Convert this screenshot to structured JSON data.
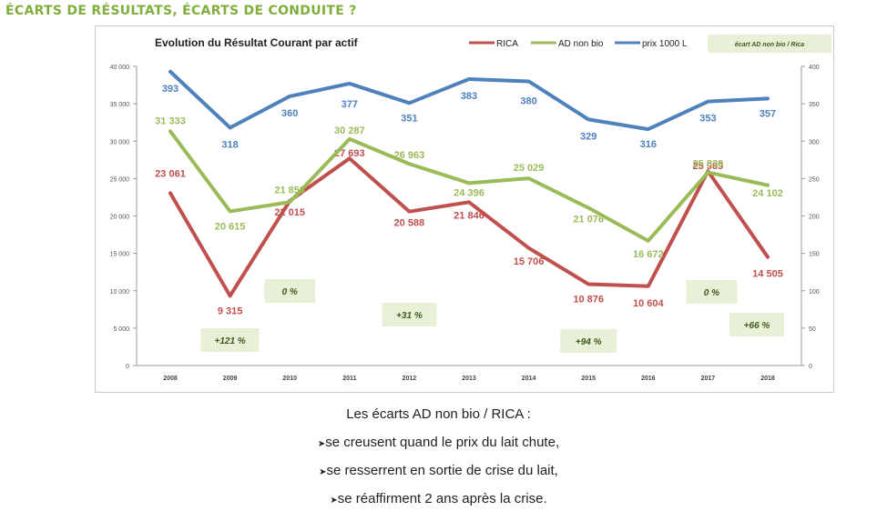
{
  "slide": {
    "heading": "ÉCARTS DE RÉSULTATS, ÉCARTS DE CONDUITE ?",
    "heading_color": "#7fae3a",
    "caption": "Les écarts AD non bio /  RICA :",
    "bullets": [
      "se creusent quand le prix du lait chute,",
      "se resserrent en sortie de crise du lait,",
      "se réaffirment 2 ans après la crise."
    ],
    "bullet_glyph": "➤"
  },
  "chart_data": {
    "type": "line",
    "title": "Evolution du Résultat Courant par actif",
    "categories": [
      "2008",
      "2009",
      "2010",
      "2011",
      "2012",
      "2013",
      "2014",
      "2015",
      "2016",
      "2017",
      "2018"
    ],
    "y_left": {
      "ylim": [
        0,
        40000
      ],
      "ticks": [
        "0",
        "5 000",
        "10 000",
        "15 000",
        "20 000",
        "25 000",
        "30 000",
        "35 000",
        "40 000"
      ]
    },
    "y_right": {
      "ylim": [
        0,
        400
      ],
      "ticks": [
        "0",
        "50",
        "100",
        "150",
        "200",
        "250",
        "300",
        "350",
        "400"
      ]
    },
    "series": [
      {
        "name": "RICA",
        "axis": "left",
        "color": "#c0504d",
        "values": [
          23061,
          9315,
          22015,
          27693,
          20588,
          21846,
          15706,
          10876,
          10604,
          25989,
          14505
        ],
        "labels": [
          "23 061",
          "9 315",
          "22 015",
          "27 693",
          "20 588",
          "21 846",
          "15 706",
          "10 876",
          "10 604",
          "25 989",
          "14 505"
        ]
      },
      {
        "name": "AD non bio",
        "axis": "left",
        "color": "#9bbb59",
        "values": [
          31333,
          20615,
          21853,
          30287,
          26963,
          24396,
          25029,
          21076,
          16672,
          25830,
          24102
        ],
        "labels": [
          "31 333",
          "20 615",
          "21 853",
          "30 287",
          "26 963",
          "24 396",
          "25 029",
          "21 076",
          "16 672",
          "25 830",
          "24 102"
        ]
      },
      {
        "name": "prix 1000 L",
        "axis": "right",
        "color": "#4f81bd",
        "values": [
          393,
          318,
          360,
          377,
          351,
          383,
          380,
          329,
          316,
          353,
          357
        ],
        "labels": [
          "393",
          "318",
          "360",
          "377",
          "351",
          "383",
          "380",
          "329",
          "316",
          "353",
          "357"
        ]
      }
    ],
    "legend_extra": "écart AD non bio / Rica",
    "gap_boxes": [
      {
        "text": "+121 %",
        "year": "2009"
      },
      {
        "text": "0 %",
        "year": "2010"
      },
      {
        "text": "+31 %",
        "year": "2012"
      },
      {
        "text": "+94 %",
        "year": "2015"
      },
      {
        "text": "0 %",
        "year": "2017"
      },
      {
        "text": "+66 %",
        "year": "2018"
      }
    ],
    "gap_box_color": "#e8f0d8",
    "gap_box_text_color": "#3d5a1a",
    "legend_position": "top",
    "grid": false
  }
}
